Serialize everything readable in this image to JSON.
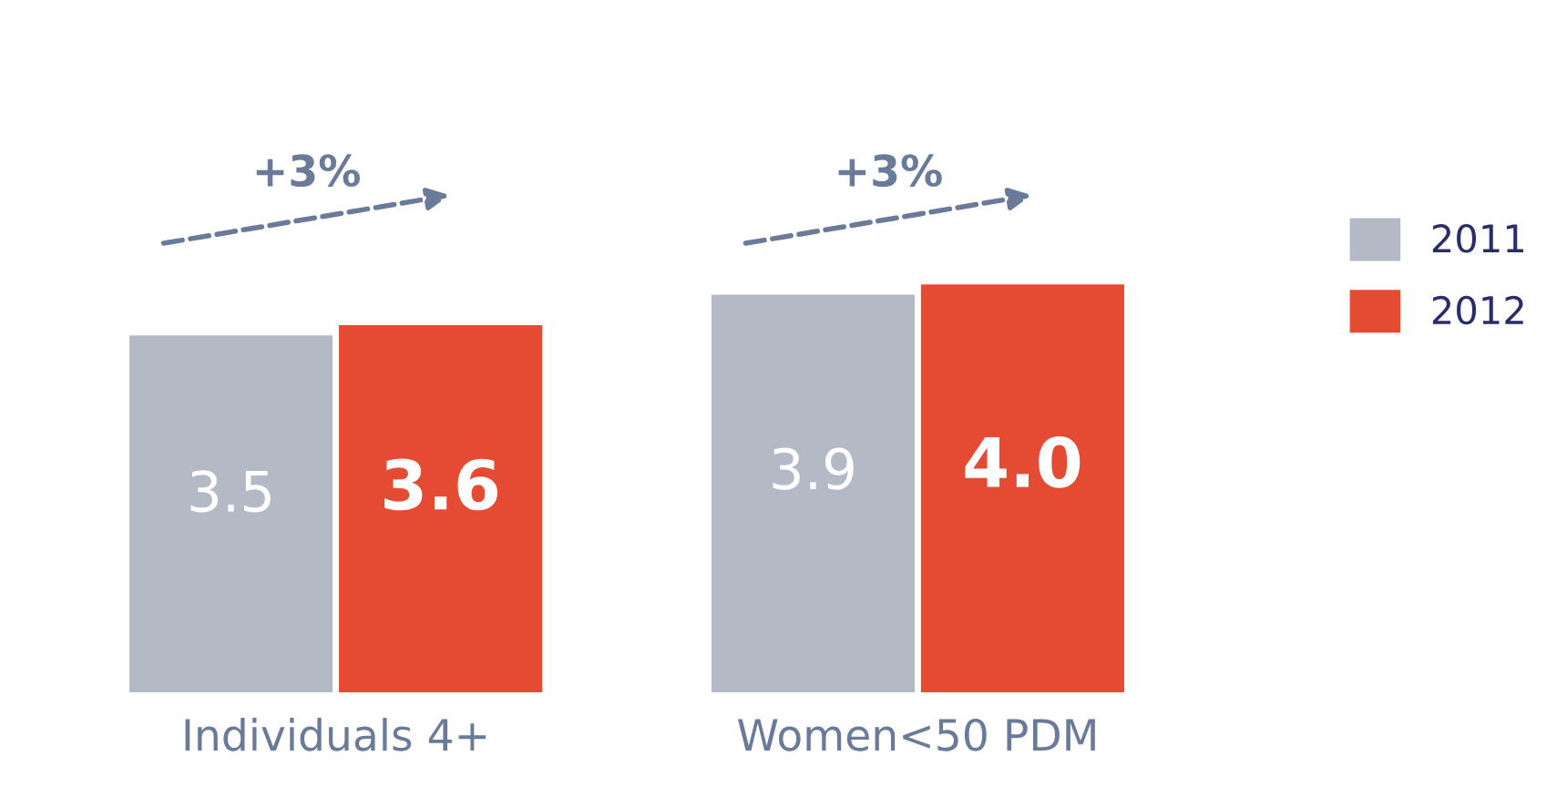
{
  "chart_data": {
    "type": "bar",
    "categories": [
      "Individuals 4+",
      "Women<50 PDM"
    ],
    "series": [
      {
        "name": "2011",
        "color": "#b4b9c6",
        "values": [
          3.5,
          3.9
        ],
        "value_labels": [
          "3.5",
          "3.9"
        ]
      },
      {
        "name": "2012",
        "color": "#e54b33",
        "values": [
          3.6,
          4.0
        ],
        "value_labels": [
          "3.6",
          "4.0"
        ]
      }
    ],
    "annotations": [
      "+3%",
      "+3%"
    ],
    "legend": "right",
    "grid": false,
    "tick_labels": "x"
  }
}
